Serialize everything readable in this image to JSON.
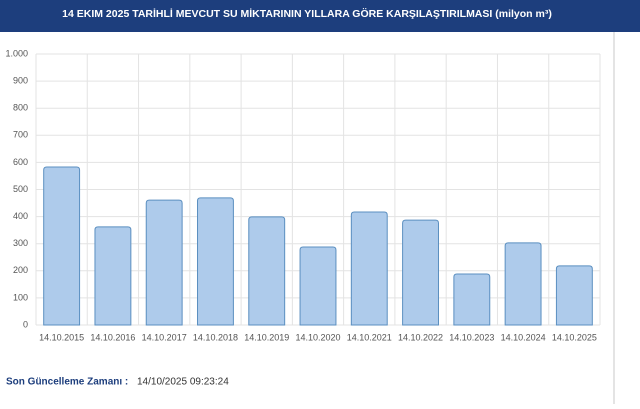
{
  "chart_data": {
    "type": "bar",
    "title": "14 EKIM 2025 TARİHLİ MEVCUT SU MİKTARININ YILLARA GÖRE KARŞILAŞTIRILMASI (milyon m³)",
    "categories": [
      "14.10.2015",
      "14.10.2016",
      "14.10.2017",
      "14.10.2018",
      "14.10.2019",
      "14.10.2020",
      "14.10.2021",
      "14.10.2022",
      "14.10.2023",
      "14.10.2024",
      "14.10.2025"
    ],
    "values": [
      583,
      362,
      461,
      469,
      399,
      288,
      417,
      387,
      188,
      303,
      218
    ],
    "color": "#aecbeb",
    "ylim": [
      0,
      1000
    ],
    "yticks": [
      0,
      100,
      200,
      300,
      400,
      500,
      600,
      700,
      800,
      900,
      {
        "value": 1000,
        "label": "1.000"
      }
    ],
    "grid": true
  },
  "footer": {
    "label": "Son Güncelleme Zamanı :",
    "value": "14/10/2025 09:23:24"
  }
}
